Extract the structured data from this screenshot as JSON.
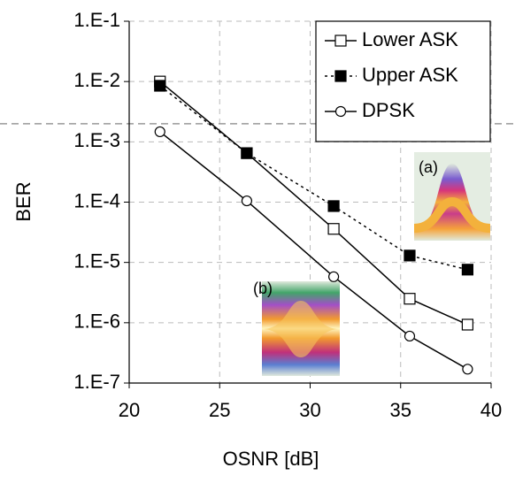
{
  "chart_data": {
    "type": "line",
    "x_label": "OSNR [dB]",
    "y_label": "BER",
    "xlim": [
      20,
      40
    ],
    "xticks": [
      20,
      25,
      30,
      35,
      40
    ],
    "ylim": [
      1e-07,
      0.1
    ],
    "log_y": true,
    "yticks": [
      {
        "value": 0.1,
        "label": "1.E-1"
      },
      {
        "value": 0.01,
        "label": "1.E-2"
      },
      {
        "value": 0.001,
        "label": "1.E-3"
      },
      {
        "value": 0.0001,
        "label": "1.E-4"
      },
      {
        "value": 1e-05,
        "label": "1.E-5"
      },
      {
        "value": 1e-06,
        "label": "1.E-6"
      },
      {
        "value": 1e-07,
        "label": "1.E-7"
      }
    ],
    "grid": true,
    "threshold_line": 0.002,
    "legend": "top-right",
    "series": [
      {
        "name": "Lower ASK",
        "color": "#000000",
        "marker": "square-open",
        "dash": "solid",
        "x": [
          21.7,
          26.5,
          31.3,
          35.5,
          38.7
        ],
        "values": [
          0.01,
          0.00065,
          3.6e-05,
          2.5e-06,
          9.3e-07
        ]
      },
      {
        "name": "Upper ASK",
        "color": "#000000",
        "marker": "square-filled",
        "dash": "dotted",
        "x": [
          21.7,
          26.5,
          31.3,
          35.5,
          38.7
        ],
        "values": [
          0.0085,
          0.00065,
          8.6e-05,
          1.3e-05,
          7.6e-06
        ]
      },
      {
        "name": "DPSK",
        "color": "#000000",
        "marker": "circle-open",
        "dash": "solid",
        "x": [
          21.7,
          26.5,
          31.3,
          35.5,
          38.7
        ],
        "values": [
          0.00147,
          0.000105,
          5.8e-06,
          6e-07,
          1.7e-07
        ]
      }
    ],
    "insets": [
      {
        "label": "(a)"
      },
      {
        "label": "(b)"
      }
    ]
  }
}
